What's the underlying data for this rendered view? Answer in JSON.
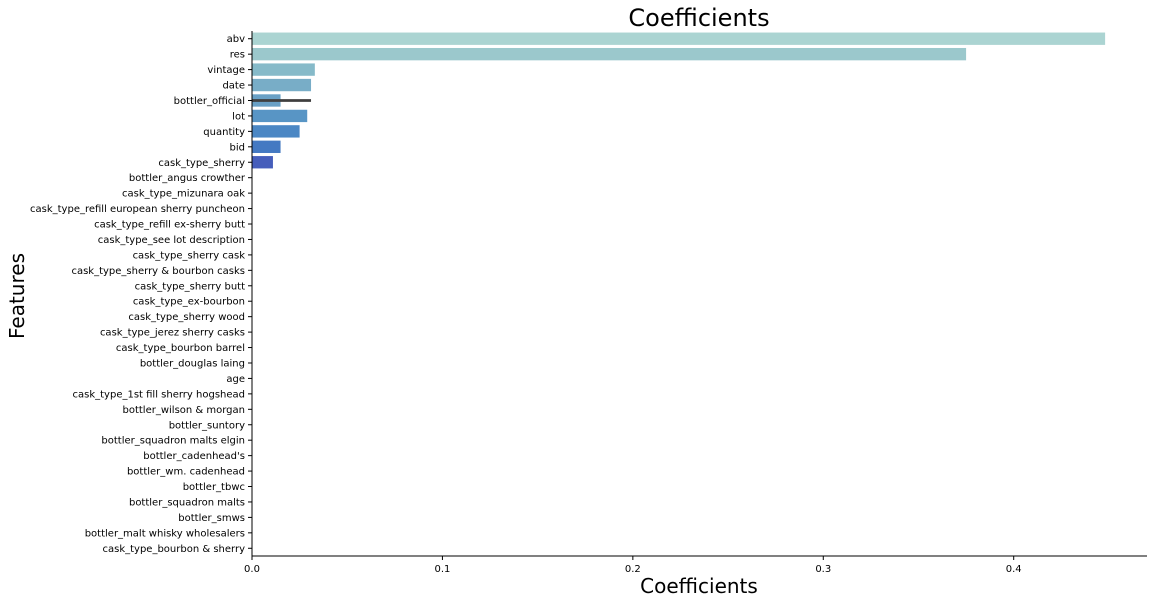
{
  "chart_data": {
    "type": "bar",
    "orientation": "horizontal",
    "title": "Coefficients",
    "xlabel": "Coefficients",
    "ylabel": "Features",
    "xlim": [
      0,
      0.47
    ],
    "xticks": [
      0.0,
      0.1,
      0.2,
      0.3,
      0.4
    ],
    "xtick_labels": [
      "0.0",
      "0.1",
      "0.2",
      "0.3",
      "0.4"
    ],
    "grid": false,
    "categories": [
      "abv",
      "res",
      "vintage",
      "date",
      "bottler_official",
      "lot",
      "quantity",
      "bid",
      "cask_type_sherry",
      "bottler_angus crowther",
      "cask_type_mizunara oak",
      "cask_type_refill european sherry puncheon",
      "cask_type_refill ex-sherry butt",
      "cask_type_see lot description",
      "cask_type_sherry cask",
      "cask_type_sherry & bourbon casks",
      "cask_type_sherry butt",
      "cask_type_ex-bourbon",
      "cask_type_sherry wood",
      "cask_type_jerez sherry casks",
      "cask_type_bourbon barrel",
      "bottler_douglas laing",
      "age",
      "cask_type_1st fill sherry hogshead",
      "bottler_wilson & morgan",
      "bottler_suntory",
      "bottler_squadron malts elgin",
      "bottler_cadenhead's",
      "bottler_wm. cadenhead",
      "bottler_tbwc",
      "bottler_squadron malts",
      "bottler_smws",
      "bottler_malt whisky wholesalers",
      "cask_type_bourbon & sherry"
    ],
    "values": [
      0.448,
      0.375,
      0.033,
      0.031,
      0.015,
      0.029,
      0.025,
      0.015,
      0.011,
      0,
      0,
      0,
      0,
      0,
      0,
      0,
      0,
      0,
      0,
      0,
      0,
      0,
      0,
      0,
      0,
      0,
      0,
      0,
      0,
      0,
      0,
      0,
      0,
      0
    ],
    "error_bars": [
      {
        "category": "bottler_official",
        "low": 0.0,
        "high": 0.031
      }
    ],
    "colors": [
      "#abd4d2",
      "#9bc8cc",
      "#86bac9",
      "#78adc7",
      "#69a0c5",
      "#5895c5",
      "#4b87c4",
      "#4479c2",
      "#465ebb"
    ]
  }
}
